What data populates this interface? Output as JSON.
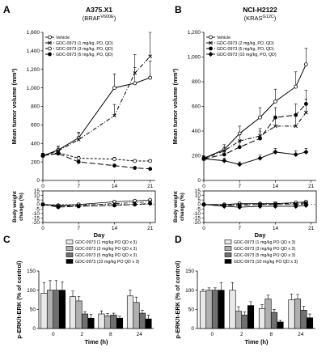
{
  "panels": [
    {
      "letter": "A",
      "title": "A375.X1",
      "subtitle": {
        "pre": "(BRAF",
        "sup": "V600E",
        "post": ")"
      },
      "chart_data": {
        "type": "line",
        "xlabel": "Day",
        "ylabel": "Mean tumor volume (mm³)",
        "xlim": [
          0,
          22
        ],
        "xticks": [
          0,
          7,
          14,
          21
        ],
        "ylim": [
          0,
          1600
        ],
        "yticks": [
          0,
          200,
          400,
          600,
          800,
          1000,
          1200,
          1400,
          1600
        ],
        "ytick_labels": [
          "0",
          "200",
          "400",
          "600",
          "800",
          "1,000",
          "1,200",
          "1,400",
          "1,600"
        ],
        "series": [
          {
            "name": "Vehicle",
            "style": "solid-open-circle",
            "x": [
              0,
              3,
              7,
              14,
              18,
              21
            ],
            "y": [
              265,
              330,
              460,
              1000,
              1050,
              1110
            ],
            "err": [
              25,
              40,
              60,
              150,
              170,
              180
            ]
          },
          {
            "name": "GDC-0973 (1 mg/kg, PO, QD)",
            "style": "dashdot-x",
            "x": [
              0,
              3,
              7,
              14,
              18,
              21
            ],
            "y": [
              270,
              320,
              440,
              700,
              1160,
              1340
            ],
            "err": [
              25,
              40,
              70,
              120,
              200,
              260
            ]
          },
          {
            "name": "GDC-0973 (3 mg/kg, PO, QD)",
            "style": "dash-open-circle",
            "x": [
              0,
              3,
              7,
              14,
              18,
              21
            ],
            "y": [
              265,
              300,
              240,
              230,
              210,
              210
            ],
            "err": [
              20,
              25,
              20,
              20,
              15,
              15
            ]
          },
          {
            "name": "GDC-0973 (5 mg/kg, PO, QD)",
            "style": "longdash-filled-circle",
            "x": [
              0,
              3,
              7,
              14,
              18,
              21
            ],
            "y": [
              270,
              290,
              200,
              160,
              135,
              125
            ],
            "err": [
              20,
              20,
              15,
              15,
              12,
              10
            ]
          }
        ],
        "bw": {
          "ylabel": "Body weight change (%)",
          "ylim": [
            -20,
            15
          ],
          "yticks": [
            -20,
            -15,
            -10,
            -5,
            0,
            5,
            10,
            15
          ],
          "series": [
            {
              "x": [
                0,
                3,
                7,
                14,
                18,
                21
              ],
              "y": [
                0,
                -1,
                0,
                3,
                4,
                5
              ]
            },
            {
              "x": [
                0,
                3,
                7,
                14,
                18,
                21
              ],
              "y": [
                0,
                -2,
                -1,
                1,
                2,
                3
              ]
            },
            {
              "x": [
                0,
                3,
                7,
                14,
                18,
                21
              ],
              "y": [
                0,
                -2,
                -2,
                -1,
                0,
                1
              ]
            },
            {
              "x": [
                0,
                3,
                7,
                14,
                18,
                21
              ],
              "y": [
                0,
                -3,
                -2,
                -1,
                0,
                1
              ]
            }
          ]
        }
      }
    },
    {
      "letter": "B",
      "title": "NCI-H2122",
      "subtitle": {
        "pre": "(KRAS",
        "sup": "G12C",
        "post": ")"
      },
      "chart_data": {
        "type": "line",
        "xlabel": "Day",
        "ylabel": "Mean tumor volume (mm³)",
        "xlim": [
          0,
          22
        ],
        "xticks": [
          0,
          7,
          14,
          21
        ],
        "ylim": [
          0,
          1200
        ],
        "yticks": [
          0,
          200,
          400,
          600,
          800,
          1000,
          1200
        ],
        "ytick_labels": [
          "0",
          "200",
          "400",
          "600",
          "800",
          "1,000",
          "1,200"
        ],
        "series": [
          {
            "name": "Vehicle",
            "style": "solid-open-circle",
            "x": [
              0,
              4,
              7,
              11,
              14,
              18,
              20
            ],
            "y": [
              180,
              250,
              380,
              510,
              640,
              760,
              940
            ],
            "err": [
              20,
              40,
              60,
              80,
              100,
              120,
              130
            ]
          },
          {
            "name": "GDC-0973 (2 mg/kg, PO, QD)",
            "style": "dashdot-x",
            "x": [
              0,
              4,
              7,
              11,
              14,
              18,
              20
            ],
            "y": [
              175,
              240,
              320,
              360,
              440,
              440,
              550
            ],
            "err": [
              20,
              30,
              50,
              60,
              80,
              90,
              110
            ]
          },
          {
            "name": "GDC-0973 (5 mg/kg, PO, QD)",
            "style": "longdash-filled-circle",
            "x": [
              0,
              4,
              7,
              11,
              14,
              18,
              20
            ],
            "y": [
              175,
              210,
              270,
              340,
              510,
              530,
              620
            ],
            "err": [
              20,
              30,
              40,
              60,
              80,
              90,
              110
            ]
          },
          {
            "name": "GDC-0973 (10 mg/kg, PO, QD)",
            "style": "solid-filled-diamond",
            "x": [
              0,
              4,
              7,
              11,
              14,
              18,
              20
            ],
            "y": [
              175,
              160,
              130,
              180,
              230,
              210,
              230
            ],
            "err": [
              15,
              20,
              20,
              25,
              30,
              30,
              30
            ]
          }
        ],
        "bw": {
          "ylabel": "Body weight change (%)",
          "ylim": [
            -20,
            15
          ],
          "yticks": [
            -20,
            -15,
            -10,
            -5,
            0,
            5,
            10,
            15
          ],
          "series": [
            {
              "x": [
                0,
                4,
                7,
                11,
                14,
                18,
                20
              ],
              "y": [
                0,
                0,
                1,
                1,
                1,
                2,
                3
              ]
            },
            {
              "x": [
                0,
                4,
                7,
                11,
                14,
                18,
                20
              ],
              "y": [
                0,
                -1,
                0,
                0,
                1,
                1,
                2
              ]
            },
            {
              "x": [
                0,
                4,
                7,
                11,
                14,
                18,
                20
              ],
              "y": [
                0,
                -1,
                -1,
                0,
                0,
                0,
                1
              ]
            },
            {
              "x": [
                0,
                4,
                7,
                11,
                14,
                18,
                20
              ],
              "y": [
                0,
                -2,
                -3,
                -2,
                -2,
                -2,
                -1
              ]
            }
          ]
        }
      }
    },
    {
      "letter": "C",
      "chart_data": {
        "type": "bar",
        "xlabel": "Time (h)",
        "ylabel": "p-ERK/t-ERK (% of control)",
        "ylim": [
          0,
          150
        ],
        "yticks": [
          0,
          50,
          100,
          150
        ],
        "categories": [
          "0",
          "2",
          "8",
          "24"
        ],
        "series": [
          {
            "name": "GDC-0973 (1 mg/kg PO QD x 3)",
            "color": "#e8e8e8",
            "values": [
              92,
              83,
              38,
              85
            ],
            "err": [
              28,
              15,
              8,
              15
            ]
          },
          {
            "name": "GDC-0973 (3 mg/kg PO QD x 3)",
            "color": "#b0b0b0",
            "values": [
              100,
              72,
              33,
              68
            ],
            "err": [
              25,
              12,
              6,
              14
            ]
          },
          {
            "name": "GDC-0973 (5 mg/kg PO QD x 3)",
            "color": "#707070",
            "values": [
              100,
              38,
              35,
              40
            ],
            "err": [
              25,
              6,
              5,
              8
            ]
          },
          {
            "name": "GDC-0973 (10 mg/kg PO QD x 3)",
            "color": "#000000",
            "values": [
              100,
              27,
              27,
              25
            ],
            "err": [
              22,
              10,
              5,
              10
            ]
          }
        ]
      }
    },
    {
      "letter": "D",
      "chart_data": {
        "type": "bar",
        "xlabel": "Time (h)",
        "ylabel": "p-ERK/t-ERK (% of control)",
        "ylim": [
          0,
          150
        ],
        "yticks": [
          0,
          50,
          100,
          150
        ],
        "categories": [
          "0",
          "2",
          "8",
          "24"
        ],
        "series": [
          {
            "name": "GDC-0973 (1 mg/kg PO QD x 3)",
            "color": "#e8e8e8",
            "values": [
              97,
              100,
              52,
              75
            ],
            "err": [
              5,
              20,
              10,
              15
            ]
          },
          {
            "name": "GDC-0973 (3 mg/kg PO QD x 3)",
            "color": "#b0b0b0",
            "values": [
              100,
              45,
              77,
              77
            ],
            "err": [
              6,
              12,
              10,
              12
            ]
          },
          {
            "name": "GDC-0973 (5 mg/kg PO QD x 3)",
            "color": "#707070",
            "values": [
              100,
              35,
              42,
              48
            ],
            "err": [
              6,
              8,
              8,
              10
            ]
          },
          {
            "name": "GDC-0973 (10 mg/kg PO QD x 3)",
            "color": "#000000",
            "values": [
              100,
              60,
              17,
              28
            ],
            "err": [
              20,
              10,
              4,
              10
            ]
          }
        ]
      }
    }
  ]
}
